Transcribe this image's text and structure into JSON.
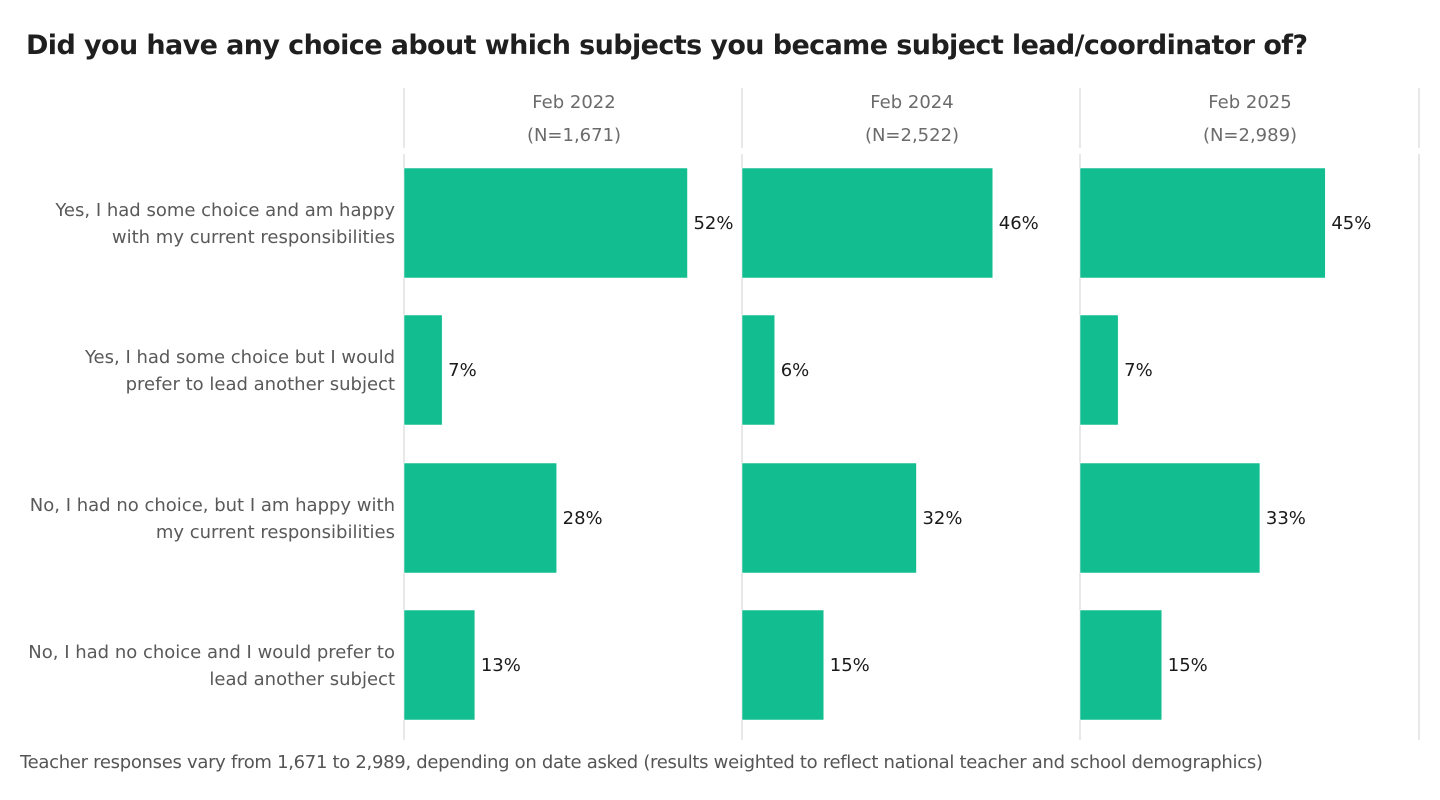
{
  "chart_data": {
    "type": "bar",
    "orientation": "horizontal",
    "title": "Did you have any choice about which subjects you became subject lead/coordinator of?",
    "footnote": "Teacher responses vary from 1,671 to 2,989, depending on date asked (results weighted to reflect national teacher and school demographics)",
    "categories": [
      [
        "Yes, I had some choice and am happy",
        "with my current responsibilities"
      ],
      [
        "Yes, I had some choice but I would",
        "prefer to lead another subject"
      ],
      [
        "No, I had no choice, but I am happy with",
        "my current responsibilities"
      ],
      [
        "No, I had no choice and I would prefer to",
        "lead another subject"
      ]
    ],
    "series": [
      {
        "name": "Feb 2022",
        "n": "(N=1,671)",
        "values": [
          52,
          7,
          28,
          13
        ]
      },
      {
        "name": "Feb 2024",
        "n": "(N=2,522)",
        "values": [
          46,
          6,
          32,
          15
        ]
      },
      {
        "name": "Feb 2025",
        "n": "(N=2,989)",
        "values": [
          45,
          7,
          33,
          15
        ]
      }
    ],
    "value_suffix": "%",
    "xlim": [
      0,
      62
    ],
    "bar_color": "#12BE90",
    "divider_color": "#d0d0d0",
    "legend": "none"
  }
}
